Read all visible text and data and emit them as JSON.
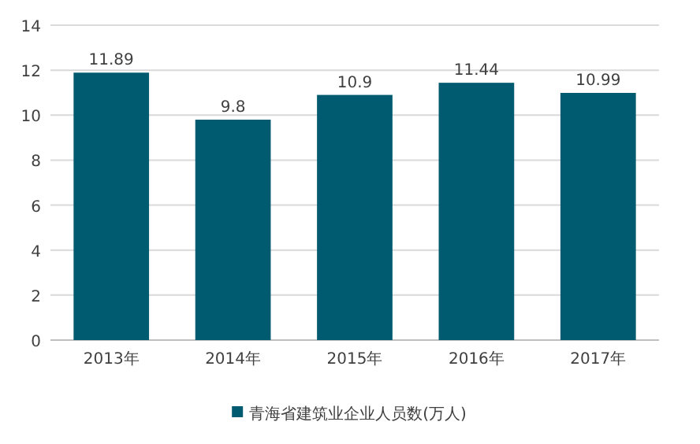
{
  "chart_data": {
    "type": "bar",
    "categories": [
      "2013年",
      "2014年",
      "2015年",
      "2016年",
      "2017年"
    ],
    "series": [
      {
        "name": "青海省建筑业企业人员数(万人)",
        "color": "#005a70",
        "values": [
          11.89,
          9.8,
          10.9,
          11.44,
          10.99
        ]
      }
    ],
    "ylim": [
      0,
      14
    ],
    "yticks": [
      0,
      2,
      4,
      6,
      8,
      10,
      12,
      14
    ],
    "grid": "y",
    "data_labels": true,
    "legend": "bottom"
  }
}
